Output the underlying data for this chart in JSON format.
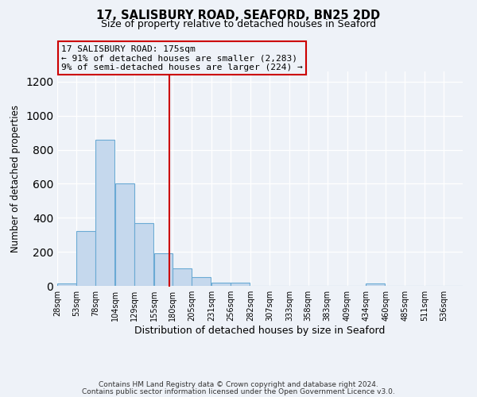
{
  "title1": "17, SALISBURY ROAD, SEAFORD, BN25 2DD",
  "title2": "Size of property relative to detached houses in Seaford",
  "xlabel": "Distribution of detached houses by size in Seaford",
  "ylabel": "Number of detached properties",
  "footer1": "Contains HM Land Registry data © Crown copyright and database right 2024.",
  "footer2": "Contains public sector information licensed under the Open Government Licence v3.0.",
  "bin_labels": [
    "28sqm",
    "53sqm",
    "78sqm",
    "104sqm",
    "129sqm",
    "155sqm",
    "180sqm",
    "205sqm",
    "231sqm",
    "256sqm",
    "282sqm",
    "307sqm",
    "333sqm",
    "358sqm",
    "383sqm",
    "409sqm",
    "434sqm",
    "460sqm",
    "485sqm",
    "511sqm",
    "536sqm"
  ],
  "bin_edges": [
    28,
    53,
    78,
    104,
    129,
    155,
    180,
    205,
    231,
    256,
    282,
    307,
    333,
    358,
    383,
    409,
    434,
    460,
    485,
    511,
    536
  ],
  "bar_heights": [
    15,
    320,
    860,
    600,
    370,
    190,
    105,
    50,
    20,
    20,
    0,
    0,
    0,
    0,
    0,
    0,
    15,
    0,
    0,
    0,
    0
  ],
  "bar_color": "#c5d8ed",
  "bar_edge_color": "#6aaad4",
  "property_line_x": 175,
  "property_line_color": "#cc0000",
  "annotation_title": "17 SALISBURY ROAD: 175sqm",
  "annotation_line1": "← 91% of detached houses are smaller (2,283)",
  "annotation_line2": "9% of semi-detached houses are larger (224) →",
  "annotation_box_edge": "#cc0000",
  "ylim": [
    0,
    1260
  ],
  "background_color": "#eef2f8"
}
